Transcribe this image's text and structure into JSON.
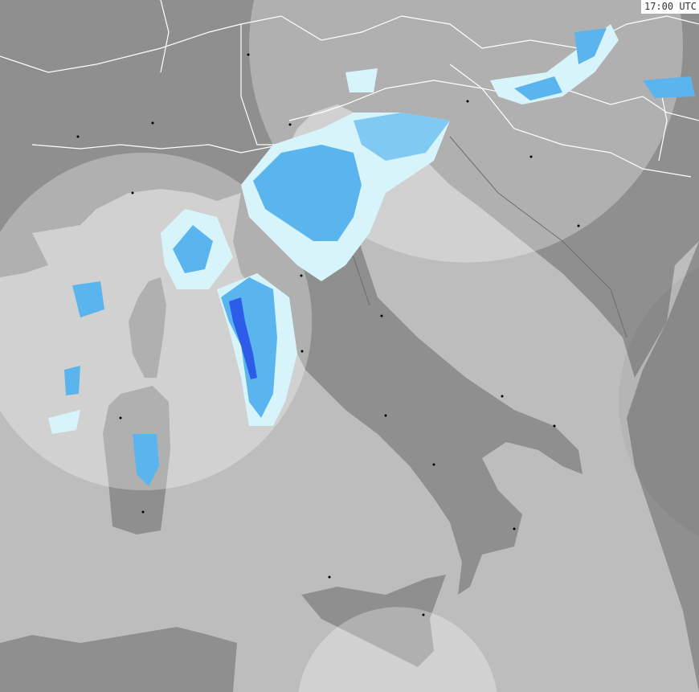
{
  "timestamp": "17:00 UTC",
  "colors": {
    "sea": "#bdbdbd",
    "land": "#8f8f8f",
    "coverage_sea": "#d4d4d4",
    "coverage_land": "#a9a9a9",
    "borders": "#ffffff",
    "rain_light": "#d8f4fb",
    "rain_moderate": "#5ab4ee",
    "rain_heavy": "#2d5de8"
  }
}
